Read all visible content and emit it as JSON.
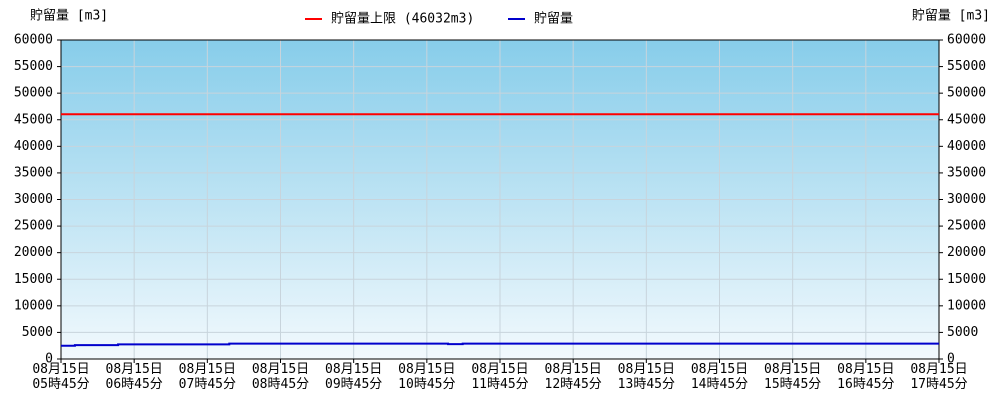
{
  "chart_data": {
    "type": "line",
    "y_label": "貯留量 [m3]",
    "y2_label": "貯留量 [m3]",
    "xlim": [
      0,
      12
    ],
    "xticks": [
      {
        "value": 0,
        "label": "08月15日\n05時45分"
      },
      {
        "value": 1,
        "label": "08月15日\n06時45分"
      },
      {
        "value": 2,
        "label": "08月15日\n07時45分"
      },
      {
        "value": 3,
        "label": "08月15日\n08時45分"
      },
      {
        "value": 4,
        "label": "08月15日\n09時45分"
      },
      {
        "value": 5,
        "label": "08月15日\n10時45分"
      },
      {
        "value": 6,
        "label": "08月15日\n11時45分"
      },
      {
        "value": 7,
        "label": "08月15日\n12時45分"
      },
      {
        "value": 8,
        "label": "08月15日\n13時45分"
      },
      {
        "value": 9,
        "label": "08月15日\n14時45分"
      },
      {
        "value": 10,
        "label": "08月15日\n15時45分"
      },
      {
        "value": 11,
        "label": "08月15日\n16時45分"
      },
      {
        "value": 12,
        "label": "08月15日\n17時45分"
      }
    ],
    "ylim": [
      0,
      60000
    ],
    "yticks": [
      0,
      5000,
      10000,
      15000,
      20000,
      25000,
      30000,
      35000,
      40000,
      45000,
      50000,
      55000,
      60000
    ],
    "y2lim": [
      0,
      60000
    ],
    "y2ticks": [
      0,
      5000,
      10000,
      15000,
      20000,
      25000,
      30000,
      35000,
      40000,
      45000,
      50000,
      55000,
      60000
    ],
    "grid": true,
    "background": [
      "#87cdea",
      "#f2f9fd"
    ],
    "series": [
      {
        "name": "貯留量上限 (46032m3)",
        "color": "#ff0000",
        "x": [
          0,
          12
        ],
        "values": [
          46032,
          46032
        ]
      },
      {
        "name": "貯留量",
        "color": "#0000cc",
        "x": [
          0,
          0.19,
          0.19,
          0.78,
          0.78,
          2.3,
          2.3,
          5.29,
          5.29,
          5.49,
          5.49,
          12
        ],
        "values": [
          2500,
          2500,
          2600,
          2600,
          2750,
          2750,
          2900,
          2900,
          2800,
          2800,
          2900,
          2900
        ]
      }
    ]
  }
}
